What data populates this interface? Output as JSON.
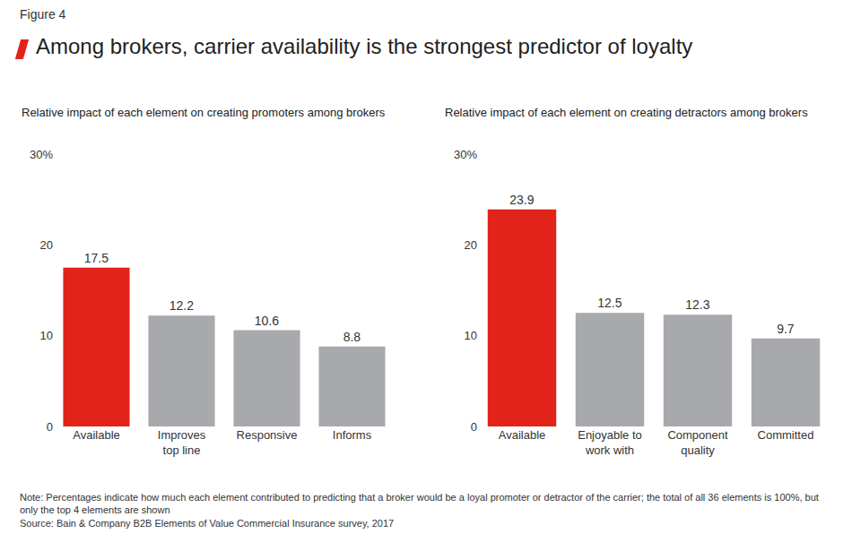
{
  "figure_label": "Figure 4",
  "title": "Among brokers, carrier availability is the strongest predictor of loyalty",
  "chart_data": [
    {
      "type": "bar",
      "title": "Relative impact of each element on creating promoters among brokers",
      "categories": [
        "Available",
        "Improves top line",
        "Responsive",
        "Informs"
      ],
      "values": [
        17.5,
        12.2,
        10.6,
        8.8
      ],
      "colors": [
        "#e2231a",
        "#a7a9ac",
        "#a7a9ac",
        "#a7a9ac"
      ],
      "ylim": [
        0,
        30
      ],
      "yticks": [
        0,
        10,
        20,
        {
          "value": 30,
          "label": "30%"
        }
      ],
      "grid": false,
      "data_labels": true
    },
    {
      "type": "bar",
      "title": "Relative impact of each element on creating detractors among brokers",
      "categories": [
        "Available",
        "Enjoyable to work with",
        "Component quality",
        "Committed"
      ],
      "values": [
        23.9,
        12.5,
        12.3,
        9.7
      ],
      "colors": [
        "#e2231a",
        "#a7a9ac",
        "#a7a9ac",
        "#a7a9ac"
      ],
      "ylim": [
        0,
        30
      ],
      "yticks": [
        0,
        10,
        20,
        {
          "value": 30,
          "label": "30%"
        }
      ],
      "grid": false,
      "data_labels": true
    }
  ],
  "note": "Note: Percentages indicate how much each element contributed to predicting that a broker would be a loyal promoter or detractor of the carrier; the total of all 36 elements is 100%, but only the top 4 elements are shown",
  "source": "Source: Bain & Company B2B Elements of Value Commercial Insurance survey, 2017"
}
